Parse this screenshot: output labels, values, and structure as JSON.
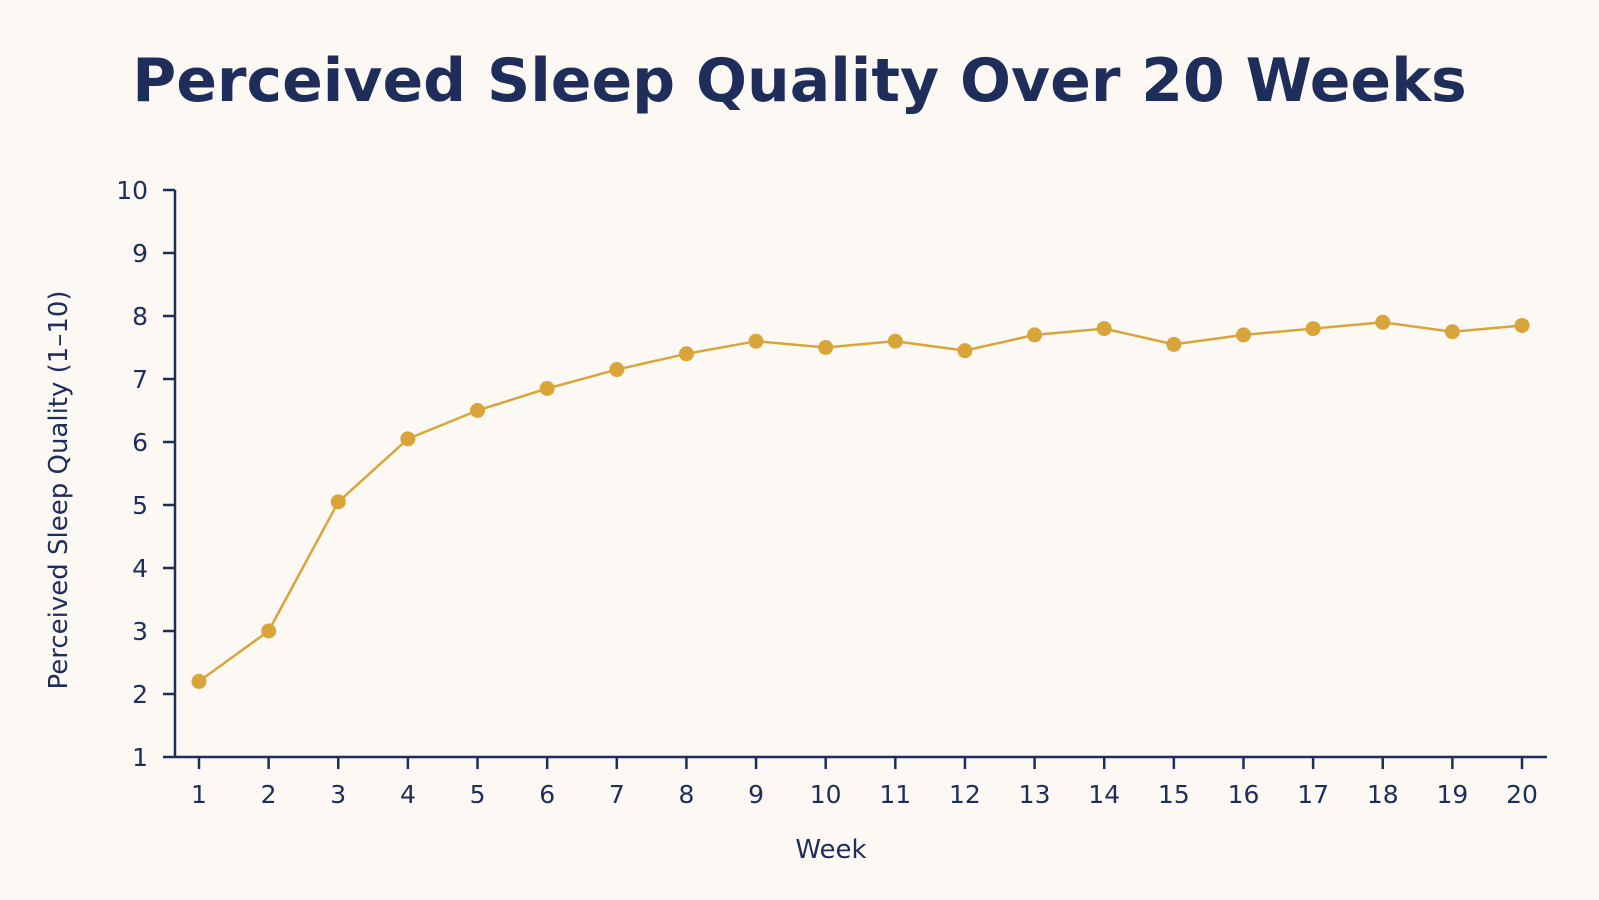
{
  "chart_data": {
    "type": "line",
    "title": "Perceived Sleep Quality Over 20 Weeks",
    "xlabel": "Week",
    "ylabel": "Perceived Sleep Quality (1–10)",
    "x": [
      1,
      2,
      3,
      4,
      5,
      6,
      7,
      8,
      9,
      10,
      11,
      12,
      13,
      14,
      15,
      16,
      17,
      18,
      19,
      20
    ],
    "y_ticks": [
      1,
      2,
      3,
      4,
      5,
      6,
      7,
      8,
      9,
      10
    ],
    "ylim": [
      1,
      10
    ],
    "xlim": [
      1,
      20
    ],
    "grid": false,
    "series": [
      {
        "color": "#d9a53a",
        "values": [
          2.2,
          3.0,
          5.05,
          6.05,
          6.5,
          6.85,
          7.15,
          7.4,
          7.6,
          7.5,
          7.6,
          7.45,
          7.7,
          7.8,
          7.55,
          7.7,
          7.8,
          7.9,
          7.75,
          7.85
        ]
      }
    ]
  },
  "colors": {
    "background": "#fcf9f4",
    "text": "#1f2d5a",
    "axis": "#1f2d5a",
    "line": "#d9a53a"
  }
}
